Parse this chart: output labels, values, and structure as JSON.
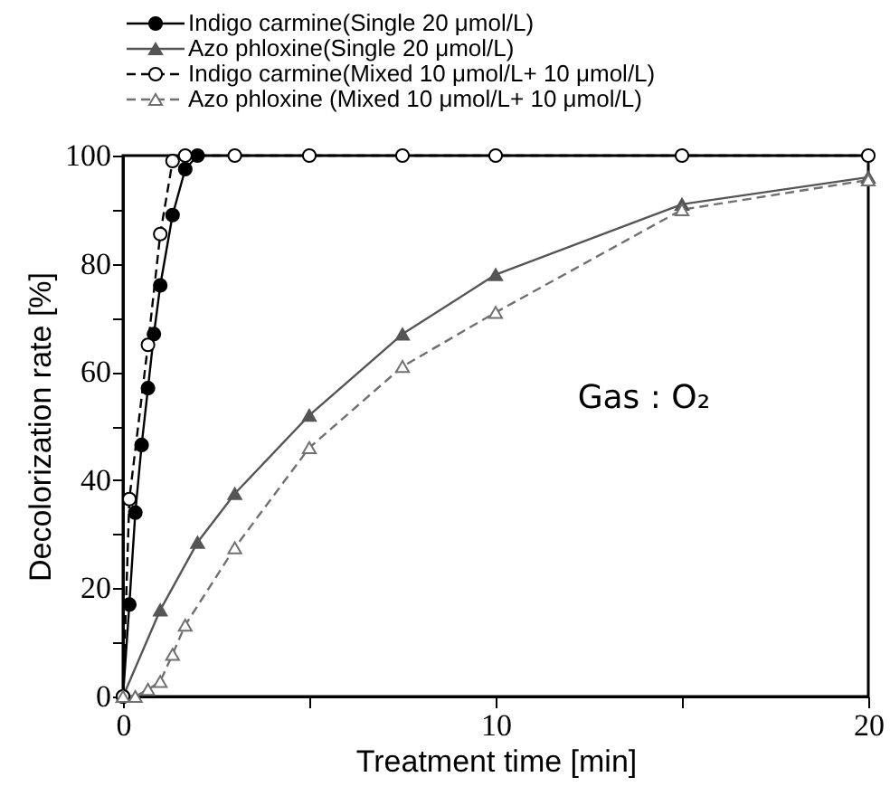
{
  "chart_data": {
    "type": "line",
    "xlabel": "Treatment time [min]",
    "ylabel": "Decolorization rate [%]",
    "xlim": [
      0,
      20
    ],
    "xticks": [
      0,
      {
        "value": 5,
        "label": null
      },
      10,
      {
        "value": 15,
        "label": null
      },
      20
    ],
    "ylim": [
      0,
      100
    ],
    "yticks": [
      0,
      {
        "value": 10,
        "label": null
      },
      20,
      {
        "value": 30,
        "label": null
      },
      40,
      {
        "value": 50,
        "label": null
      },
      60,
      {
        "value": 70,
        "label": null
      },
      80,
      {
        "value": 90,
        "label": null
      },
      100
    ],
    "grid": false,
    "legend": "top left",
    "annotations": [
      "Gas : O₂"
    ],
    "series": [
      {
        "name": "Indigo carmine(Single 20  μmol/L)",
        "color": "#000000",
        "marker": "circle",
        "line_style": "solid",
        "x": [
          0,
          0.17,
          0.33,
          0.5,
          0.67,
          0.83,
          1.0,
          1.33,
          1.67,
          2.0
        ],
        "values": [
          0,
          17,
          34,
          46.5,
          57,
          67,
          76,
          89,
          97.5,
          100
        ]
      },
      {
        "name": "Azo phloxine(Single 20  μmol/L)",
        "color": "#555555",
        "marker": "triangle",
        "line_style": "solid",
        "x": [
          0,
          1,
          2,
          3,
          5,
          7.5,
          10,
          15,
          20
        ],
        "values": [
          0,
          16,
          28.5,
          37.5,
          52,
          67,
          78,
          91,
          96
        ]
      },
      {
        "name": "Indigo carmine(Mixed 10  μmol/L+ 10  μmol/L)",
        "color": "#000000",
        "marker": "circle",
        "line_style": "dashed",
        "x": [
          0,
          0.17,
          0.67,
          1.0,
          1.33,
          1.67,
          3,
          5,
          7.5,
          10,
          15,
          20
        ],
        "values": [
          0,
          36.5,
          65,
          85.5,
          99,
          100,
          100,
          100,
          100,
          100,
          100,
          100
        ]
      },
      {
        "name": "Azo phloxine (Mixed 10  μmol/L+ 10  μmol/L)",
        "color": "#707070",
        "marker": "triangle",
        "line_style": "dashed",
        "x": [
          0,
          0.33,
          0.67,
          1.0,
          1.33,
          1.67,
          3,
          5,
          7.5,
          10,
          15,
          20
        ],
        "values": [
          0,
          0,
          1.3,
          2.8,
          7.8,
          13.2,
          27.5,
          46,
          61,
          71,
          90,
          95.5
        ]
      }
    ]
  }
}
